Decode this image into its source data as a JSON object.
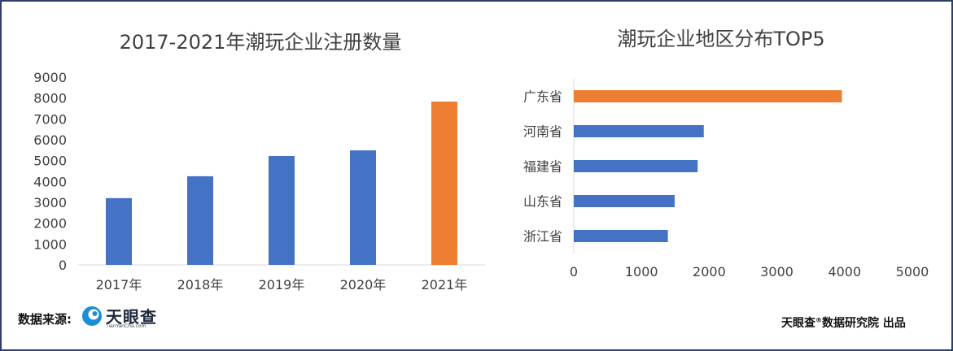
{
  "chart_data": [
    {
      "type": "bar",
      "title": "2017-2021年潮玩企业注册数量",
      "categories": [
        "2017年",
        "2018年",
        "2019年",
        "2020年",
        "2021年"
      ],
      "values": [
        3200,
        4250,
        5220,
        5490,
        7830
      ],
      "ylim": [
        0,
        9000
      ],
      "yticks": [
        0,
        1000,
        2000,
        3000,
        4000,
        5000,
        6000,
        7000,
        8000,
        9000
      ],
      "grid": false,
      "colors": {
        "default": "#4472c4",
        "highlight": "#ed7d31"
      },
      "highlight_index": 4
    },
    {
      "type": "bar",
      "orientation": "horizontal",
      "title": "潮玩企业地区分布TOP5",
      "categories": [
        "广东省",
        "河南省",
        "福建省",
        "山东省",
        "浙江省"
      ],
      "values": [
        3960,
        1920,
        1830,
        1490,
        1390
      ],
      "xlim": [
        0,
        5000
      ],
      "xticks": [
        0,
        1000,
        2000,
        3000,
        4000,
        5000
      ],
      "grid": false,
      "colors": {
        "default": "#4472c4",
        "highlight": "#ed7d31"
      },
      "highlight_index": 0
    }
  ],
  "footer": {
    "source_label": "数据来源:",
    "brand_name": "天眼查",
    "brand_sub": "TianYanCha.com",
    "credit_text": "天眼查",
    "credit_mark": "®",
    "credit_rest": "数据研究院 出品"
  },
  "icons": {
    "brand": "tianyancha-logo-icon"
  }
}
